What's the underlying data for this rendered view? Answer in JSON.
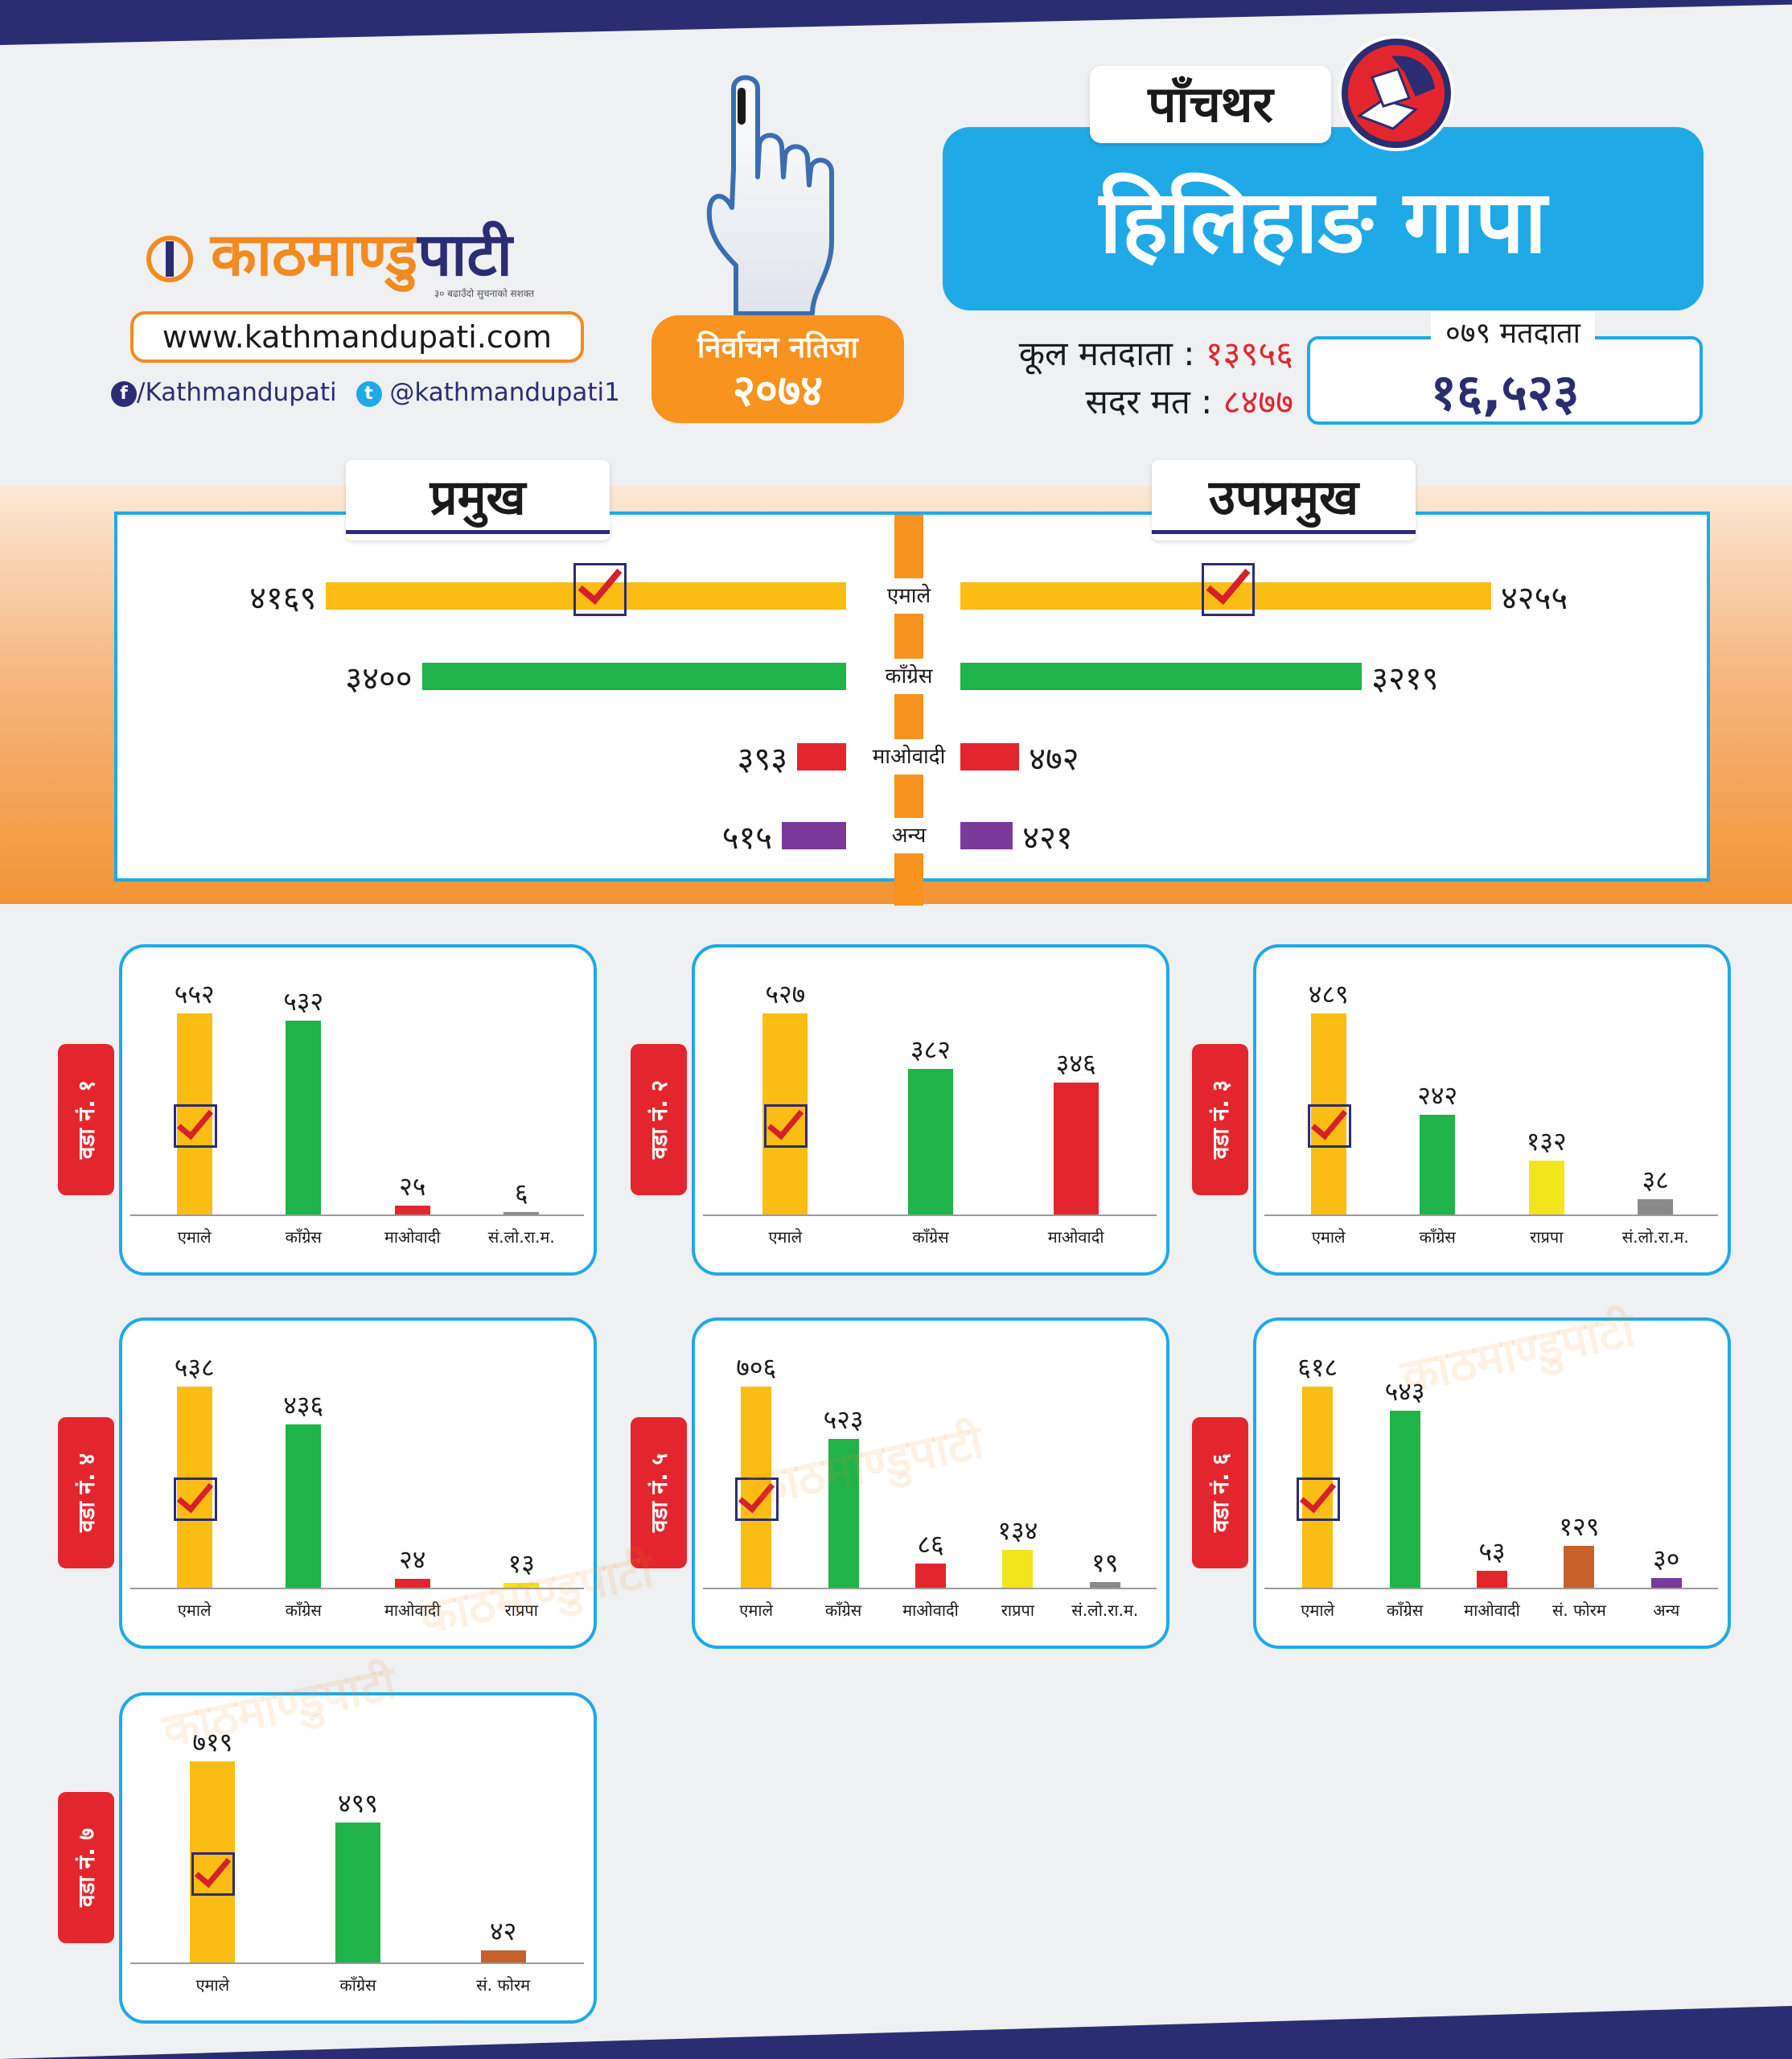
{
  "header": {
    "logo_text_a": "काठमाण्डु",
    "logo_text_b": "पाटी",
    "logo_tagline": "३० बढाउँदो सुचनाको सशक्त",
    "site_url": "www.kathmandupati.com",
    "facebook": "/Kathmandupati",
    "twitter": "@kathmandupati1",
    "badge_line1": "निर्वाचन नतिजा",
    "badge_line2": "२०७४",
    "district": "पाँचथर",
    "title": "हिलिहाङ गापा",
    "total_voters_label": "कूल मतदाता :",
    "total_voters": "१३९५६",
    "valid_votes_label": "सदर मत :",
    "valid_votes": "८४७७",
    "voters_079_label": "०७९ मतदाता",
    "voters_079": "१६,५२३"
  },
  "colors": {
    "uml": "#fbbd13",
    "congress": "#1fb34a",
    "maoist": "#e3262d",
    "other": "#7a3a9a",
    "rpp": "#f2e51b",
    "slrm": "#8a8a8a",
    "forum": "#c8602a",
    "accent_blue": "#1fa9e7",
    "accent_orange": "#f7931e"
  },
  "chart_data": [
    {
      "type": "bar",
      "title": "प्रमुख",
      "orientation": "horizontal",
      "categories": [
        "एमाले",
        "काँग्रेस",
        "माओवादी",
        "अन्य"
      ],
      "values": [
        4169,
        3400,
        393,
        515
      ],
      "value_labels": [
        "४१६९",
        "३४००",
        "३९३",
        "५१५"
      ],
      "winner": "एमाले"
    },
    {
      "type": "bar",
      "title": "उपप्रमुख",
      "orientation": "horizontal",
      "categories": [
        "एमाले",
        "काँग्रेस",
        "माओवादी",
        "अन्य"
      ],
      "values": [
        4255,
        3219,
        472,
        421
      ],
      "value_labels": [
        "४२५५",
        "३२१९",
        "४७२",
        "४२१"
      ],
      "winner": "एमाले"
    },
    {
      "type": "bar",
      "title": "वडा नं. १",
      "categories": [
        "एमाले",
        "काँग्रेस",
        "माओवादी",
        "सं.लो.रा.म."
      ],
      "values": [
        552,
        532,
        25,
        6
      ],
      "value_labels": [
        "५५२",
        "५३२",
        "२५",
        "६"
      ],
      "winner": "एमाले"
    },
    {
      "type": "bar",
      "title": "वडा नं. २",
      "categories": [
        "एमाले",
        "काँग्रेस",
        "माओवादी"
      ],
      "values": [
        527,
        382,
        346
      ],
      "value_labels": [
        "५२७",
        "३८२",
        "३४६"
      ],
      "winner": "एमाले"
    },
    {
      "type": "bar",
      "title": "वडा नं. ३",
      "categories": [
        "एमाले",
        "काँग्रेस",
        "राप्रपा",
        "सं.लो.रा.म."
      ],
      "values": [
        489,
        242,
        132,
        38
      ],
      "value_labels": [
        "४८९",
        "२४२",
        "१३२",
        "३८"
      ],
      "winner": "एमाले"
    },
    {
      "type": "bar",
      "title": "वडा नं. ४",
      "categories": [
        "एमाले",
        "काँग्रेस",
        "माओवादी",
        "राप्रपा"
      ],
      "values": [
        538,
        436,
        24,
        13
      ],
      "value_labels": [
        "५३८",
        "४३६",
        "२४",
        "१३"
      ],
      "winner": "एमाले"
    },
    {
      "type": "bar",
      "title": "वडा नं. ५",
      "categories": [
        "एमाले",
        "काँग्रेस",
        "माओवादी",
        "राप्रपा",
        "सं.लो.रा.म."
      ],
      "values": [
        706,
        523,
        86,
        134,
        19
      ],
      "value_labels": [
        "७०६",
        "५२३",
        "८६",
        "१३४",
        "१९"
      ],
      "winner": "एमाले"
    },
    {
      "type": "bar",
      "title": "वडा नं. ६",
      "categories": [
        "एमाले",
        "काँग्रेस",
        "माओवादी",
        "सं. फोरम",
        "अन्य"
      ],
      "values": [
        618,
        543,
        53,
        129,
        30
      ],
      "value_labels": [
        "६१८",
        "५४३",
        "५३",
        "१२९",
        "३०"
      ],
      "winner": "एमाले"
    },
    {
      "type": "bar",
      "title": "वडा नं. ७",
      "categories": [
        "एमाले",
        "काँग्रेस",
        "सं. फोरम"
      ],
      "values": [
        719,
        499,
        42
      ],
      "value_labels": [
        "७१९",
        "४९९",
        "४२"
      ],
      "winner": "एमाले"
    }
  ]
}
